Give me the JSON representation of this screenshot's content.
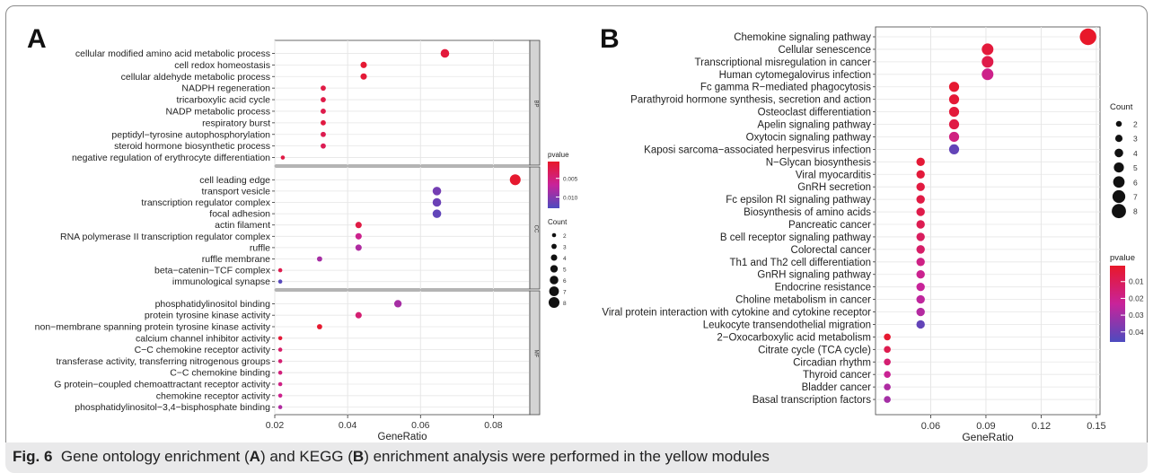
{
  "figure": {
    "caption_label": "Fig. 6",
    "caption_parts": [
      "Gene ontology enrichment (",
      "A",
      ") and KEGG (",
      "B",
      ") enrichment analysis were performed in the yellow modules"
    ]
  },
  "colors": {
    "low_p": "#e8182a",
    "mid_p": "#c8239a",
    "high_p": "#4d4bbf",
    "panel_bg": "#ffffff",
    "grid": "#e6e6e6",
    "strip": "#d4d4d4"
  },
  "chart_data": [
    {
      "type": "scatter",
      "panel_label": "A",
      "xlabel": "GeneRatio",
      "ylabel": "",
      "xlim": [
        0.02,
        0.09
      ],
      "xticks": [
        0.02,
        0.04,
        0.06,
        0.08
      ],
      "xtick_labels": [
        "0.02",
        "0.04",
        "0.06",
        "0.08"
      ],
      "grid": true,
      "facets": [
        {
          "strip": "BP",
          "terms": [
            {
              "label": "cellular modified amino acid metabolic process",
              "x": 0.0667,
              "count": 6,
              "p": 0.0015
            },
            {
              "label": "cell redox homeostasis",
              "x": 0.0444,
              "count": 4,
              "p": 0.001
            },
            {
              "label": "cellular aldehyde metabolic process",
              "x": 0.0444,
              "count": 4,
              "p": 0.0012
            },
            {
              "label": "NADPH regeneration",
              "x": 0.0333,
              "count": 3,
              "p": 0.002
            },
            {
              "label": "tricarboxylic acid cycle",
              "x": 0.0333,
              "count": 3,
              "p": 0.0022
            },
            {
              "label": "NADP metabolic process",
              "x": 0.0333,
              "count": 3,
              "p": 0.0024
            },
            {
              "label": "respiratory burst",
              "x": 0.0333,
              "count": 3,
              "p": 0.0018
            },
            {
              "label": "peptidyl−tyrosine autophosphorylation",
              "x": 0.0333,
              "count": 3,
              "p": 0.0026
            },
            {
              "label": "steroid hormone biosynthetic process",
              "x": 0.0333,
              "count": 3,
              "p": 0.0028
            },
            {
              "label": "negative regulation of erythrocyte differentiation",
              "x": 0.0222,
              "count": 2,
              "p": 0.002
            }
          ]
        },
        {
          "strip": "CC",
          "terms": [
            {
              "label": "cell leading edge",
              "x": 0.086,
              "count": 8,
              "p": 0.0008
            },
            {
              "label": "transport vesicle",
              "x": 0.0645,
              "count": 6,
              "p": 0.011
            },
            {
              "label": "transcription regulator complex",
              "x": 0.0645,
              "count": 6,
              "p": 0.0115
            },
            {
              "label": "focal adhesion",
              "x": 0.0645,
              "count": 6,
              "p": 0.012
            },
            {
              "label": "actin filament",
              "x": 0.043,
              "count": 4,
              "p": 0.002
            },
            {
              "label": "RNA polymerase II transcription regulator complex",
              "x": 0.043,
              "count": 4,
              "p": 0.006
            },
            {
              "label": "ruffle",
              "x": 0.043,
              "count": 4,
              "p": 0.008
            },
            {
              "label": "ruffle membrane",
              "x": 0.0323,
              "count": 3,
              "p": 0.0085
            },
            {
              "label": "beta−catenin−TCF complex",
              "x": 0.0215,
              "count": 2,
              "p": 0.0025
            },
            {
              "label": "immunological synapse",
              "x": 0.0215,
              "count": 2,
              "p": 0.0125
            }
          ]
        },
        {
          "strip": "MF",
          "terms": [
            {
              "label": "phosphatidylinositol binding",
              "x": 0.0538,
              "count": 5,
              "p": 0.0085
            },
            {
              "label": "protein tyrosine kinase activity",
              "x": 0.043,
              "count": 4,
              "p": 0.0045
            },
            {
              "label": "non−membrane spanning protein tyrosine kinase activity",
              "x": 0.0323,
              "count": 3,
              "p": 0.0008
            },
            {
              "label": "calcium channel inhibitor activity",
              "x": 0.0215,
              "count": 2,
              "p": 0.0012
            },
            {
              "label": "C−C chemokine receptor activity",
              "x": 0.0215,
              "count": 2,
              "p": 0.004
            },
            {
              "label": "transferase activity, transferring nitrogenous groups",
              "x": 0.0215,
              "count": 2,
              "p": 0.0045
            },
            {
              "label": "C−C chemokine binding",
              "x": 0.0215,
              "count": 2,
              "p": 0.005
            },
            {
              "label": "G protein−coupled chemoattractant receptor activity",
              "x": 0.0215,
              "count": 2,
              "p": 0.0055
            },
            {
              "label": "chemokine receptor activity",
              "x": 0.0215,
              "count": 2,
              "p": 0.006
            },
            {
              "label": "phosphatidylinositol−3,4−bisphosphate binding",
              "x": 0.0215,
              "count": 2,
              "p": 0.008
            }
          ]
        }
      ],
      "color_legend": {
        "title": "pvalue",
        "ticks": [
          0.005,
          0.01
        ],
        "tick_labels": [
          "0.005",
          "0.010"
        ],
        "range": [
          0.0005,
          0.013
        ]
      },
      "size_legend": {
        "title": "Count",
        "values": [
          2,
          3,
          4,
          5,
          6,
          7,
          8
        ]
      }
    },
    {
      "type": "scatter",
      "panel_label": "B",
      "xlabel": "GeneRatio",
      "ylabel": "",
      "xlim": [
        0.03,
        0.152
      ],
      "xticks": [
        0.06,
        0.09,
        0.12,
        0.15
      ],
      "xtick_labels": [
        "0.06",
        "0.09",
        "0.12",
        "0.15"
      ],
      "grid": true,
      "terms": [
        {
          "label": "Chemokine signaling pathway",
          "x": 0.1455,
          "count": 8,
          "p": 0.0005
        },
        {
          "label": "Cellular senescence",
          "x": 0.0909,
          "count": 5,
          "p": 0.004
        },
        {
          "label": "Transcriptional misregulation in cancer",
          "x": 0.0909,
          "count": 5,
          "p": 0.007
        },
        {
          "label": "Human cytomegalovirus infection",
          "x": 0.0909,
          "count": 5,
          "p": 0.02
        },
        {
          "label": "Fc gamma R−mediated phagocytosis",
          "x": 0.0727,
          "count": 4,
          "p": 0.002
        },
        {
          "label": "Parathyroid hormone synthesis, secretion and action",
          "x": 0.0727,
          "count": 4,
          "p": 0.003
        },
        {
          "label": "Osteoclast differentiation",
          "x": 0.0727,
          "count": 4,
          "p": 0.004
        },
        {
          "label": "Apelin signaling pathway",
          "x": 0.0727,
          "count": 4,
          "p": 0.006
        },
        {
          "label": "Oxytocin signaling pathway",
          "x": 0.0727,
          "count": 4,
          "p": 0.018
        },
        {
          "label": "Kaposi sarcoma−associated herpesvirus infection",
          "x": 0.0727,
          "count": 4,
          "p": 0.042
        },
        {
          "label": "N−Glycan biosynthesis",
          "x": 0.0545,
          "count": 3,
          "p": 0.003
        },
        {
          "label": "Viral myocarditis",
          "x": 0.0545,
          "count": 3,
          "p": 0.004
        },
        {
          "label": "GnRH secretion",
          "x": 0.0545,
          "count": 3,
          "p": 0.005
        },
        {
          "label": "Fc epsilon RI signaling pathway",
          "x": 0.0545,
          "count": 3,
          "p": 0.006
        },
        {
          "label": "Biosynthesis of amino acids",
          "x": 0.0545,
          "count": 3,
          "p": 0.007
        },
        {
          "label": "Pancreatic cancer",
          "x": 0.0545,
          "count": 3,
          "p": 0.0085
        },
        {
          "label": "B cell receptor signaling pathway",
          "x": 0.0545,
          "count": 3,
          "p": 0.011
        },
        {
          "label": "Colorectal cancer",
          "x": 0.0545,
          "count": 3,
          "p": 0.013
        },
        {
          "label": "Th1 and Th2 cell differentiation",
          "x": 0.0545,
          "count": 3,
          "p": 0.019
        },
        {
          "label": "GnRH signaling pathway",
          "x": 0.0545,
          "count": 3,
          "p": 0.021
        },
        {
          "label": "Endocrine resistance",
          "x": 0.0545,
          "count": 3,
          "p": 0.023
        },
        {
          "label": "Choline metabolism in cancer",
          "x": 0.0545,
          "count": 3,
          "p": 0.025
        },
        {
          "label": "Viral protein interaction with cytokine and cytokine receptor",
          "x": 0.0545,
          "count": 3,
          "p": 0.027
        },
        {
          "label": "Leukocyte transendothelial migration",
          "x": 0.0545,
          "count": 3,
          "p": 0.042
        },
        {
          "label": "2−Oxocarboxylic acid metabolism",
          "x": 0.0364,
          "count": 2,
          "p": 0.002
        },
        {
          "label": "Citrate cycle (TCA cycle)",
          "x": 0.0364,
          "count": 2,
          "p": 0.008
        },
        {
          "label": "Circadian rhythm",
          "x": 0.0364,
          "count": 2,
          "p": 0.015
        },
        {
          "label": "Thyroid cancer",
          "x": 0.0364,
          "count": 2,
          "p": 0.022
        },
        {
          "label": "Bladder cancer",
          "x": 0.0364,
          "count": 2,
          "p": 0.028
        },
        {
          "label": "Basal transcription factors",
          "x": 0.0364,
          "count": 2,
          "p": 0.03
        }
      ],
      "size_legend": {
        "title": "Count",
        "values": [
          2,
          3,
          4,
          5,
          6,
          7,
          8
        ]
      },
      "color_legend": {
        "title": "pvalue",
        "ticks": [
          0.01,
          0.02,
          0.03,
          0.04
        ],
        "tick_labels": [
          "0.01",
          "0.02",
          "0.03",
          "0.04"
        ],
        "range": [
          0.0005,
          0.046
        ]
      }
    }
  ]
}
